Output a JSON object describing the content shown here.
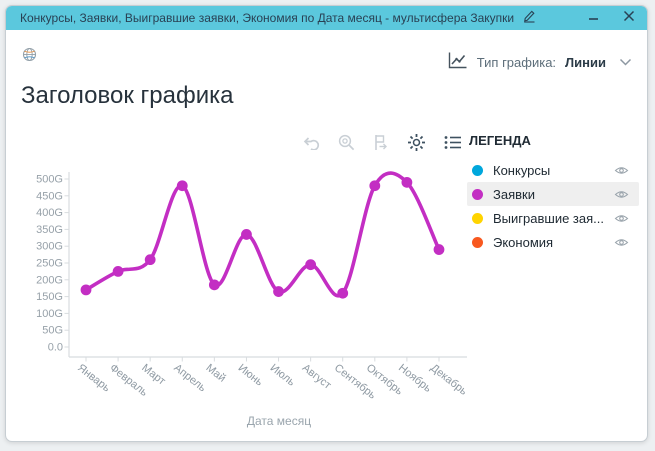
{
  "window": {
    "title": "Конкурсы, Заявки, Выигравшие заявки, Экономия по Дата месяц - мультисфера Закупки"
  },
  "chart_type_control": {
    "label": "Тип графика:",
    "value": "Линии"
  },
  "chart": {
    "title": "Заголовок графика"
  },
  "legend": {
    "heading": "ЛЕГЕНДА",
    "items": [
      {
        "label": "Конкурсы",
        "color": "#00a7dc",
        "selected": false
      },
      {
        "label": "Заявки",
        "color": "#c32ec3",
        "selected": true
      },
      {
        "label": "Выигравшие зая...",
        "color": "#ffd400",
        "selected": false
      },
      {
        "label": "Экономия",
        "color": "#f8581f",
        "selected": false
      }
    ]
  },
  "chart_data": {
    "type": "line",
    "title": "Заголовок графика",
    "xlabel": "Дата месяц",
    "ylabel": "",
    "categories": [
      "Январь",
      "Февраль",
      "Март",
      "Апрель",
      "Май",
      "Июнь",
      "Июль",
      "Август",
      "Сентябрь",
      "Октябрь",
      "Ноябрь",
      "Декабрь"
    ],
    "series": [
      {
        "name": "Заявки",
        "color": "#c32ec3",
        "values": [
          170,
          225,
          260,
          480,
          185,
          335,
          165,
          245,
          160,
          480,
          490,
          290
        ]
      }
    ],
    "unit": "G",
    "ylim": [
      0,
      500
    ],
    "y_ticks": [
      "500G",
      "450G",
      "400G",
      "350G",
      "300G",
      "250G",
      "200G",
      "150G",
      "100G",
      "50G",
      "0.0"
    ],
    "grid": false,
    "legend_position": "right"
  }
}
